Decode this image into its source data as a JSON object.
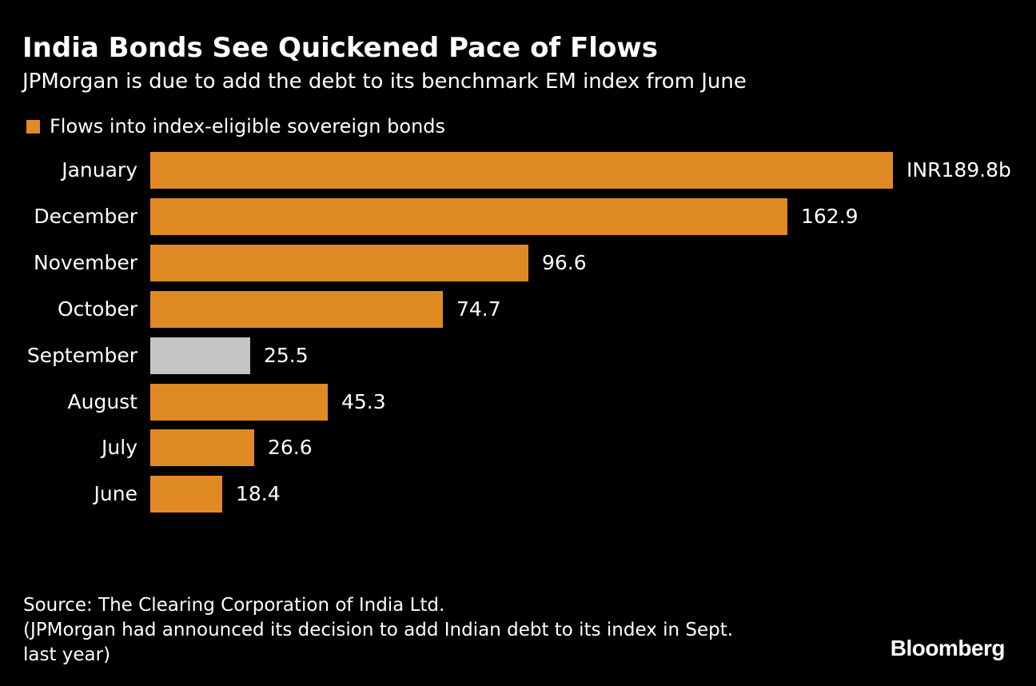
{
  "colors": {
    "background": "#000000",
    "bar_primary": "#df8a23",
    "bar_highlight": "#c4c4c4",
    "text": "#ffffff"
  },
  "chart_data": {
    "type": "bar",
    "orientation": "horizontal",
    "title": "India Bonds See Quickened Pace of Flows",
    "subtitle": "JPMorgan is due to add the debt to its benchmark EM index from June",
    "legend": [
      {
        "label": "Flows into index-eligible sovereign bonds",
        "color": "#df8a23"
      }
    ],
    "categories": [
      "January",
      "December",
      "November",
      "October",
      "September",
      "August",
      "July",
      "June"
    ],
    "values": [
      189.8,
      162.9,
      96.6,
      74.7,
      25.5,
      45.3,
      26.6,
      18.4
    ],
    "value_labels": [
      "INR189.8b",
      "162.9",
      "96.6",
      "74.7",
      "25.5",
      "45.3",
      "26.6",
      "18.4"
    ],
    "highlight_category": "September",
    "unit": "INR billions",
    "xlim": [
      0,
      189.8
    ],
    "grid": false,
    "legend_position": "top-left"
  },
  "footer": {
    "source": "Source: The Clearing Corporation of India Ltd.\n(JPMorgan had announced its decision to add Indian debt to its index in Sept.\nlast year)",
    "brand": "Bloomberg"
  }
}
